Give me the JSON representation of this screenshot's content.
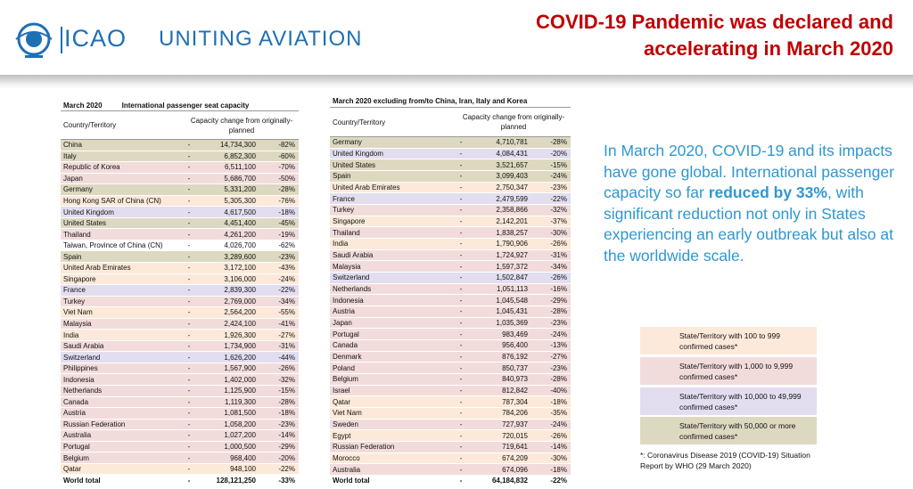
{
  "header": {
    "logo": "ICAO",
    "tagline": "UNITING AVIATION",
    "title": "COVID-19 Pandemic was declared and accelerating in March 2020"
  },
  "tables": [
    {
      "period": "March 2020",
      "title": "International passenger seat capacity",
      "columns": [
        "Country/Territory",
        "Capacity change from originally-planned"
      ],
      "rows": [
        {
          "country": "China",
          "dash": "-",
          "capacity": "14,734,300",
          "change": "-82%",
          "color": "#ddd8c0"
        },
        {
          "country": "Italy",
          "dash": "-",
          "capacity": "6,852,300",
          "change": "-60%",
          "color": "#ddd8c0"
        },
        {
          "country": "Republic of Korea",
          "dash": "-",
          "capacity": "6,511,100",
          "change": "-70%",
          "color": "#f2dcdb"
        },
        {
          "country": "Japan",
          "dash": "-",
          "capacity": "5,686,700",
          "change": "-50%",
          "color": "#f2dcdb"
        },
        {
          "country": "Germany",
          "dash": "-",
          "capacity": "5,331,200",
          "change": "-28%",
          "color": "#ddd8c0"
        },
        {
          "country": "Hong Kong SAR of China (CN)",
          "dash": "-",
          "capacity": "5,305,300",
          "change": "-76%",
          "color": "#fce9d9"
        },
        {
          "country": "United Kingdom",
          "dash": "-",
          "capacity": "4,617,500",
          "change": "-18%",
          "color": "#e2def0"
        },
        {
          "country": "United States",
          "dash": "-",
          "capacity": "4,451,400",
          "change": "-45%",
          "color": "#ddd8c0"
        },
        {
          "country": "Thailand",
          "dash": "-",
          "capacity": "4,261,200",
          "change": "-19%",
          "color": "#f2dcdb"
        },
        {
          "country": "Taiwan, Province of China (CN)",
          "dash": "-",
          "capacity": "4,026,700",
          "change": "-62%",
          "color": "#ffffff"
        },
        {
          "country": "Spain",
          "dash": "-",
          "capacity": "3,289,600",
          "change": "-23%",
          "color": "#ddd8c0"
        },
        {
          "country": "United Arab Emirates",
          "dash": "-",
          "capacity": "3,172,100",
          "change": "-43%",
          "color": "#fce9d9"
        },
        {
          "country": "Singapore",
          "dash": "-",
          "capacity": "3,106,000",
          "change": "-24%",
          "color": "#fce9d9"
        },
        {
          "country": "France",
          "dash": "-",
          "capacity": "2,839,300",
          "change": "-22%",
          "color": "#e2def0"
        },
        {
          "country": "Turkey",
          "dash": "-",
          "capacity": "2,769,000",
          "change": "-34%",
          "color": "#f2dcdb"
        },
        {
          "country": "Viet Nam",
          "dash": "-",
          "capacity": "2,564,200",
          "change": "-55%",
          "color": "#fce9d9"
        },
        {
          "country": "Malaysia",
          "dash": "-",
          "capacity": "2,424,100",
          "change": "-41%",
          "color": "#f2dcdb"
        },
        {
          "country": "India",
          "dash": "-",
          "capacity": "1,926,300",
          "change": "-27%",
          "color": "#fce9d9"
        },
        {
          "country": "Saudi Arabia",
          "dash": "-",
          "capacity": "1,734,900",
          "change": "-31%",
          "color": "#f2dcdb"
        },
        {
          "country": "Switzerland",
          "dash": "-",
          "capacity": "1,626,200",
          "change": "-44%",
          "color": "#e2def0"
        },
        {
          "country": "Philippines",
          "dash": "-",
          "capacity": "1,567,900",
          "change": "-26%",
          "color": "#f2dcdb"
        },
        {
          "country": "Indonesia",
          "dash": "-",
          "capacity": "1,402,000",
          "change": "-32%",
          "color": "#f2dcdb"
        },
        {
          "country": "Netherlands",
          "dash": "-",
          "capacity": "1,125,900",
          "change": "-15%",
          "color": "#f2dcdb"
        },
        {
          "country": "Canada",
          "dash": "-",
          "capacity": "1,119,300",
          "change": "-28%",
          "color": "#f2dcdb"
        },
        {
          "country": "Austria",
          "dash": "-",
          "capacity": "1,081,500",
          "change": "-18%",
          "color": "#f2dcdb"
        },
        {
          "country": "Russian Federation",
          "dash": "-",
          "capacity": "1,058,200",
          "change": "-23%",
          "color": "#f2dcdb"
        },
        {
          "country": "Australia",
          "dash": "-",
          "capacity": "1,027,200",
          "change": "-14%",
          "color": "#f2dcdb"
        },
        {
          "country": "Portugal",
          "dash": "-",
          "capacity": "1,000,500",
          "change": "-29%",
          "color": "#f2dcdb"
        },
        {
          "country": "Belgium",
          "dash": "-",
          "capacity": "968,400",
          "change": "-20%",
          "color": "#f2dcdb"
        },
        {
          "country": "Qatar",
          "dash": "-",
          "capacity": "948,100",
          "change": "-22%",
          "color": "#fce9d9"
        }
      ],
      "total": {
        "country": "World total",
        "dash": "-",
        "capacity": "128,121,250",
        "change": "-33%"
      }
    },
    {
      "period": "March 2020 excluding from/to China, Iran, Italy and Korea",
      "columns": [
        "Country/Territory",
        "Capacity change from originally-planned"
      ],
      "rows": [
        {
          "country": "Germany",
          "dash": "-",
          "capacity": "4,710,781",
          "change": "-28%",
          "color": "#ddd8c0"
        },
        {
          "country": "United Kingdom",
          "dash": "-",
          "capacity": "4,084,431",
          "change": "-20%",
          "color": "#e2def0"
        },
        {
          "country": "United States",
          "dash": "-",
          "capacity": "3,521,657",
          "change": "-15%",
          "color": "#ddd8c0"
        },
        {
          "country": "Spain",
          "dash": "-",
          "capacity": "3,099,403",
          "change": "-24%",
          "color": "#ddd8c0"
        },
        {
          "country": "United Arab Emirates",
          "dash": "-",
          "capacity": "2,750,347",
          "change": "-23%",
          "color": "#fce9d9"
        },
        {
          "country": "France",
          "dash": "-",
          "capacity": "2,479,599",
          "change": "-22%",
          "color": "#e2def0"
        },
        {
          "country": "Turkey",
          "dash": "-",
          "capacity": "2,358,866",
          "change": "-32%",
          "color": "#f2dcdb"
        },
        {
          "country": "Singapore",
          "dash": "-",
          "capacity": "2,142,201",
          "change": "-37%",
          "color": "#fce9d9"
        },
        {
          "country": "Thailand",
          "dash": "-",
          "capacity": "1,838,257",
          "change": "-30%",
          "color": "#f2dcdb"
        },
        {
          "country": "India",
          "dash": "-",
          "capacity": "1,790,906",
          "change": "-26%",
          "color": "#fce9d9"
        },
        {
          "country": "Saudi Arabia",
          "dash": "-",
          "capacity": "1,724,927",
          "change": "-31%",
          "color": "#f2dcdb"
        },
        {
          "country": "Malaysia",
          "dash": "-",
          "capacity": "1,597,372",
          "change": "-34%",
          "color": "#f2dcdb"
        },
        {
          "country": "Switzerland",
          "dash": "-",
          "capacity": "1,502,847",
          "change": "-26%",
          "color": "#e2def0"
        },
        {
          "country": "Netherlands",
          "dash": "-",
          "capacity": "1,051,113",
          "change": "-16%",
          "color": "#f2dcdb"
        },
        {
          "country": "Indonesia",
          "dash": "-",
          "capacity": "1,045,548",
          "change": "-29%",
          "color": "#f2dcdb"
        },
        {
          "country": "Austria",
          "dash": "-",
          "capacity": "1,045,431",
          "change": "-28%",
          "color": "#f2dcdb"
        },
        {
          "country": "Japan",
          "dash": "-",
          "capacity": "1,035,369",
          "change": "-23%",
          "color": "#f2dcdb"
        },
        {
          "country": "Portugal",
          "dash": "-",
          "capacity": "983,469",
          "change": "-24%",
          "color": "#f2dcdb"
        },
        {
          "country": "Canada",
          "dash": "-",
          "capacity": "956,400",
          "change": "-13%",
          "color": "#f2dcdb"
        },
        {
          "country": "Denmark",
          "dash": "-",
          "capacity": "876,192",
          "change": "-27%",
          "color": "#f2dcdb"
        },
        {
          "country": "Poland",
          "dash": "-",
          "capacity": "850,737",
          "change": "-23%",
          "color": "#f2dcdb"
        },
        {
          "country": "Belgium",
          "dash": "-",
          "capacity": "840,973",
          "change": "-28%",
          "color": "#f2dcdb"
        },
        {
          "country": "Israel",
          "dash": "-",
          "capacity": "812,842",
          "change": "-40%",
          "color": "#f2dcdb"
        },
        {
          "country": "Qatar",
          "dash": "-",
          "capacity": "787,304",
          "change": "-18%",
          "color": "#fce9d9"
        },
        {
          "country": "Viet Nam",
          "dash": "-",
          "capacity": "784,206",
          "change": "-35%",
          "color": "#fce9d9"
        },
        {
          "country": "Sweden",
          "dash": "-",
          "capacity": "727,937",
          "change": "-24%",
          "color": "#f2dcdb"
        },
        {
          "country": "Egypt",
          "dash": "-",
          "capacity": "720,015",
          "change": "-26%",
          "color": "#fce9d9"
        },
        {
          "country": "Russian Federation",
          "dash": "-",
          "capacity": "719,641",
          "change": "-14%",
          "color": "#f2dcdb"
        },
        {
          "country": "Morocco",
          "dash": "-",
          "capacity": "674,209",
          "change": "-30%",
          "color": "#fce9d9"
        },
        {
          "country": "Australia",
          "dash": "-",
          "capacity": "674,096",
          "change": "-18%",
          "color": "#f2dcdb"
        }
      ],
      "total": {
        "country": "World total",
        "dash": "-",
        "capacity": "64,184,832",
        "change": "-22%"
      }
    }
  ],
  "summary": {
    "before": "In March 2020, COVID-19 and its impacts have gone global. International passenger capacity so far ",
    "bold": "reduced by 33%",
    "after": ", with significant reduction not only in States experiencing an early outbreak but also at the worldwide scale."
  },
  "legend": [
    {
      "color": "#fce9d9",
      "label": "State/Territory with 100 to 999 confirmed cases*"
    },
    {
      "color": "#f2dcdb",
      "label": "State/Territory with 1,000 to 9,999 confirmed cases*"
    },
    {
      "color": "#e2def0",
      "label": "State/Territory with 10,000 to 49,999 confirmed cases*"
    },
    {
      "color": "#ddd8c0",
      "label": "State/Territory with 50,000 or more confirmed cases*"
    }
  ],
  "footnote": "*: Coronavirus Disease 2019 (COVID-19) Situation Report by WHO (29 March 2020)"
}
